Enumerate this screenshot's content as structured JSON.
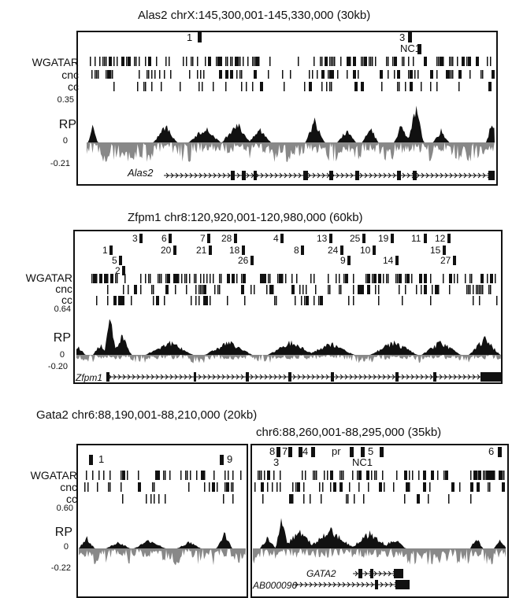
{
  "figure": {
    "alas2": {
      "title": "Alas2 chrX:145,300,001-145,330,000 (30kb)",
      "tracks": {
        "wgatar": "WGATAR",
        "cnc": "cnc",
        "cc": "cc",
        "rp": "RP"
      },
      "y_ticks": {
        "top": "0.35",
        "zero": "0",
        "bottom": "-0.21"
      },
      "gene": "Alas2",
      "sites": [
        {
          "label": "1"
        },
        {
          "label": "3"
        },
        {
          "label": "NC1"
        }
      ]
    },
    "zfpm1": {
      "title": "Zfpm1 chr8:120,920,001-120,980,000 (60kb)",
      "tracks": {
        "wgatar": "WGATAR",
        "cnc": "cnc",
        "cc": "cc",
        "rp": "RP"
      },
      "y_ticks": {
        "top": "0.64",
        "zero": "0",
        "bottom": "-0.20"
      },
      "gene": "Zfpm1",
      "sites": [
        {
          "label": "3"
        },
        {
          "label": "6"
        },
        {
          "label": "7"
        },
        {
          "label": "28"
        },
        {
          "label": "4"
        },
        {
          "label": "13"
        },
        {
          "label": "25"
        },
        {
          "label": "19"
        },
        {
          "label": "11"
        },
        {
          "label": "12"
        },
        {
          "label": "1"
        },
        {
          "label": "20"
        },
        {
          "label": "21"
        },
        {
          "label": "18"
        },
        {
          "label": "8"
        },
        {
          "label": "24"
        },
        {
          "label": "10"
        },
        {
          "label": "15"
        },
        {
          "label": "5"
        },
        {
          "label": "26"
        },
        {
          "label": "9"
        },
        {
          "label": "14"
        },
        {
          "label": "27"
        },
        {
          "label": "2"
        }
      ]
    },
    "gata2": {
      "title_left": "Gata2 chr6:88,190,001-88,210,000 (20kb)",
      "title_right": "chr6:88,260,001-88,295,000 (35kb)",
      "tracks": {
        "wgatar": "WGATAR",
        "cnc": "cnc",
        "cc": "cc",
        "rp": "RP"
      },
      "y_ticks": {
        "top": "0.60",
        "zero": "0",
        "bottom": "-0.22"
      },
      "gene_1": "GATA2",
      "gene_2": "AB000096",
      "sites": [
        {
          "label": "1"
        },
        {
          "label": "9"
        },
        {
          "label": "8"
        },
        {
          "label": "7"
        },
        {
          "label": "4"
        },
        {
          "label": "pr"
        },
        {
          "label": "5"
        },
        {
          "label": "6"
        },
        {
          "label": "3"
        },
        {
          "label": "NC1"
        }
      ]
    }
  }
}
